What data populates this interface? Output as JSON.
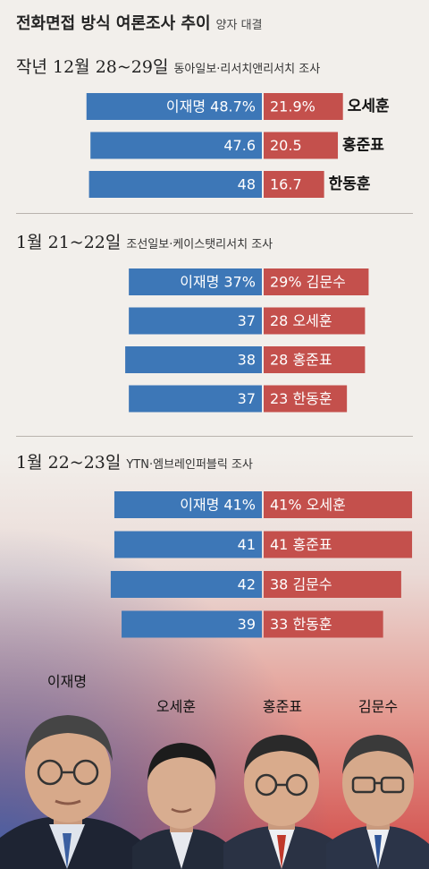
{
  "title": "전화면접 방식 여론조사 추이",
  "subtitle": "양자 대결",
  "chart_data": [
    {
      "type": "bar",
      "date": "작년 12월 28~29일",
      "source": "동아일보·리서치앤리서치 조사",
      "left_candidate": "이재명",
      "rows": [
        {
          "left_value": 48.7,
          "right_value": 21.9,
          "opponent": "오세훈",
          "left_label": "이재명 48.7%",
          "right_label": "21.9%",
          "opponent_inside": false
        },
        {
          "left_value": 47.6,
          "right_value": 20.5,
          "opponent": "홍준표",
          "left_label": "47.6",
          "right_label": "20.5",
          "opponent_inside": false
        },
        {
          "left_value": 48,
          "right_value": 16.7,
          "opponent": "한동훈",
          "left_label": "48",
          "right_label": "16.7",
          "opponent_inside": false
        }
      ]
    },
    {
      "type": "bar",
      "date": "1월 21~22일",
      "source": "조선일보·케이스탯리서치 조사",
      "left_candidate": "이재명",
      "rows": [
        {
          "left_value": 37,
          "right_value": 29,
          "opponent": "김문수",
          "left_label": "이재명 37%",
          "right_label": "29% 김문수",
          "opponent_inside": true
        },
        {
          "left_value": 37,
          "right_value": 28,
          "opponent": "오세훈",
          "left_label": "37",
          "right_label": "28 오세훈",
          "opponent_inside": true
        },
        {
          "left_value": 38,
          "right_value": 28,
          "opponent": "홍준표",
          "left_label": "38",
          "right_label": "28 홍준표",
          "opponent_inside": true
        },
        {
          "left_value": 37,
          "right_value": 23,
          "opponent": "한동훈",
          "left_label": "37",
          "right_label": "23 한동훈",
          "opponent_inside": true
        }
      ]
    },
    {
      "type": "bar",
      "date": "1월 22~23일",
      "source": "YTN·엠브레인퍼블릭 조사",
      "left_candidate": "이재명",
      "rows": [
        {
          "left_value": 41,
          "right_value": 41,
          "opponent": "오세훈",
          "left_label": "이재명 41%",
          "right_label": "41% 오세훈",
          "opponent_inside": true
        },
        {
          "left_value": 41,
          "right_value": 41,
          "opponent": "홍준표",
          "left_label": "41",
          "right_label": "41 홍준표",
          "opponent_inside": true
        },
        {
          "left_value": 42,
          "right_value": 38,
          "opponent": "김문수",
          "left_label": "42",
          "right_label": "38 김문수",
          "opponent_inside": true
        },
        {
          "left_value": 39,
          "right_value": 33,
          "opponent": "한동훈",
          "left_label": "39",
          "right_label": "33 한동훈",
          "opponent_inside": true
        }
      ]
    }
  ],
  "colors": {
    "left_bar": "#3d77b7",
    "right_bar": "#c4504c",
    "bar_text": "#ffffff"
  },
  "photo_labels": [
    "이재명",
    "오세훈",
    "홍준표",
    "김문수"
  ]
}
